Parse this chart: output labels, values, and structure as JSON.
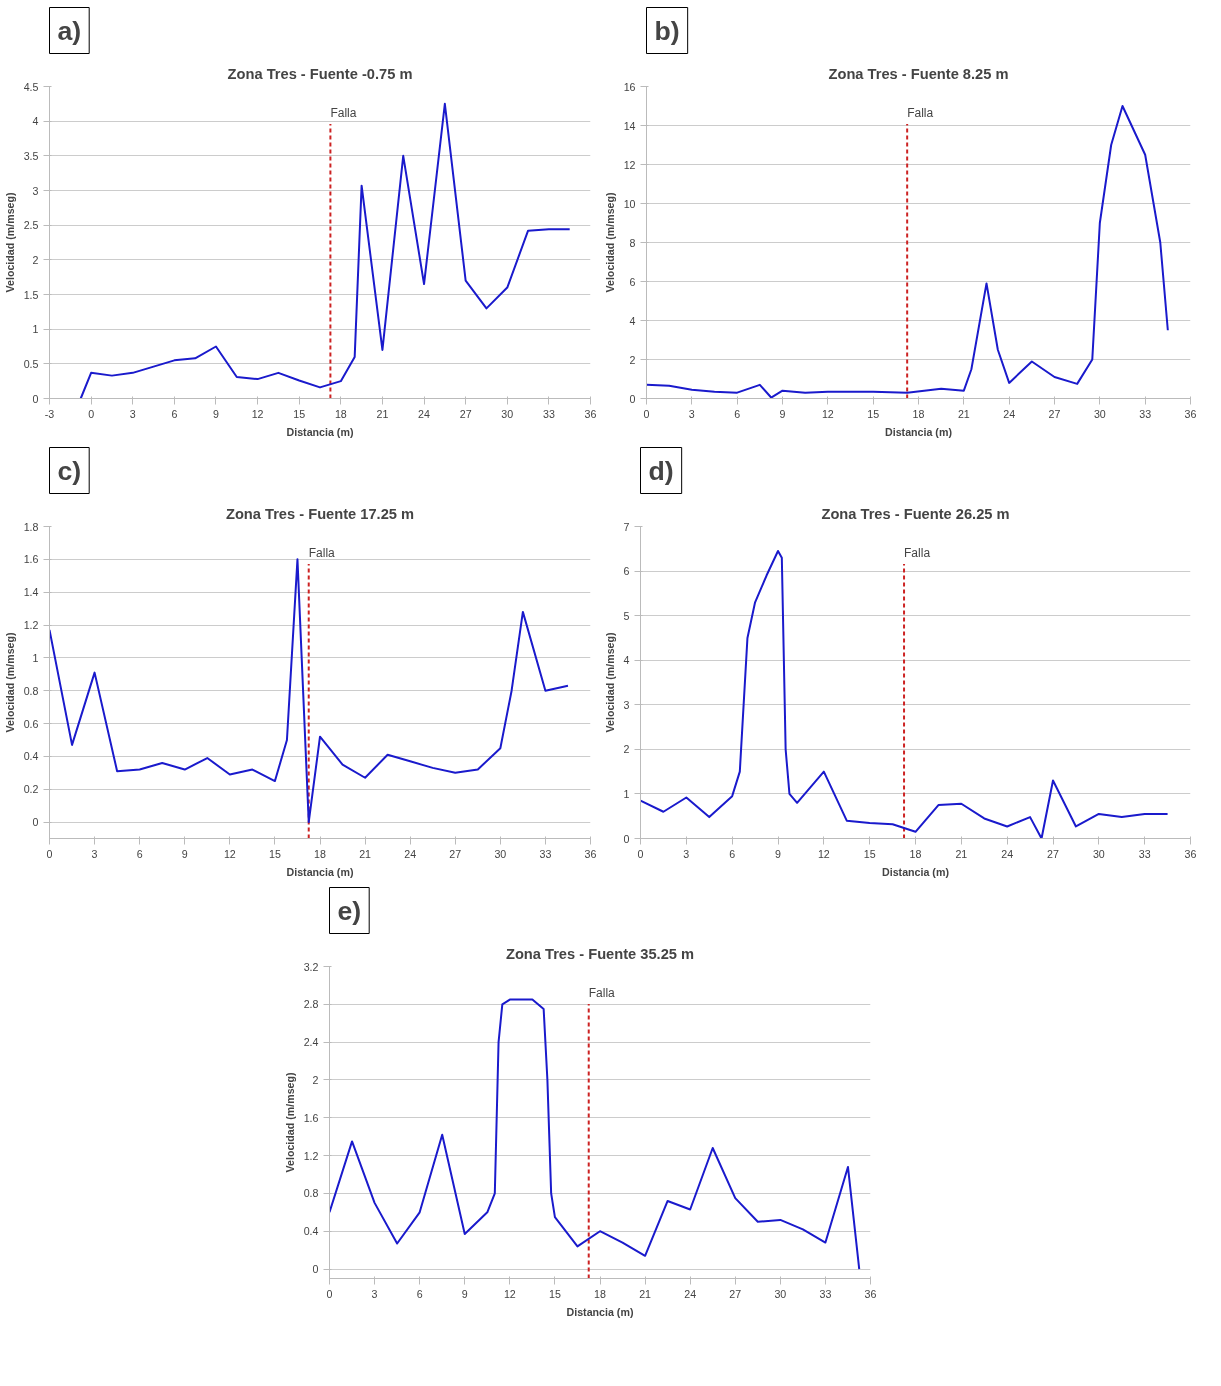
{
  "chart_data": [
    {
      "type": "line",
      "title": "Zona Tres - Fuente -0.75 m",
      "xlabel": "Distancia (m)",
      "ylabel": "Velocidad (m/mseg)",
      "annotations": [
        "a)"
      ],
      "grid": "y",
      "marker": "none",
      "line_style": "solid",
      "xlim": [
        -3,
        36
      ],
      "xticks": [
        -3,
        0,
        3,
        6,
        9,
        12,
        15,
        18,
        21,
        24,
        27,
        30,
        33,
        36
      ],
      "ylim": [
        0,
        4.5
      ],
      "yticks": [
        0,
        0.5,
        1,
        1.5,
        2,
        2.5,
        3,
        3.5,
        4,
        4.5
      ],
      "ref_lines": [
        {
          "axis": "x",
          "value": 17.25,
          "label": "Falla",
          "color": "#cc2222",
          "line_style": "dashed"
        }
      ],
      "series": [
        {
          "color": "#1a1acc",
          "x": [
            -0.75,
            0,
            1.5,
            3,
            4.5,
            6,
            7.5,
            9,
            10.5,
            12,
            13.5,
            15,
            16.5,
            18,
            19,
            19.5,
            21,
            22.5,
            24,
            25.5,
            27,
            28.5,
            30,
            31.5,
            33,
            34.5
          ],
          "values": [
            0,
            0.37,
            0.33,
            0.37,
            0.46,
            0.55,
            0.58,
            0.75,
            0.31,
            0.28,
            0.37,
            0.26,
            0.16,
            0.25,
            0.6,
            3.07,
            0.7,
            3.5,
            1.65,
            4.25,
            1.7,
            1.3,
            1.6,
            2.42,
            2.44,
            2.44
          ]
        }
      ]
    },
    {
      "type": "line",
      "title": "Zona Tres - Fuente 8.25 m",
      "xlabel": "Distancia (m)",
      "ylabel": "Velocidad (m/mseg)",
      "annotations": [
        "b)"
      ],
      "grid": "y",
      "marker": "none",
      "line_style": "solid",
      "xlim": [
        0,
        36
      ],
      "xticks": [
        0,
        3,
        6,
        9,
        12,
        15,
        18,
        21,
        24,
        27,
        30,
        33,
        36
      ],
      "ylim": [
        0,
        16
      ],
      "yticks": [
        0,
        2,
        4,
        6,
        8,
        10,
        12,
        14,
        16
      ],
      "ref_lines": [
        {
          "axis": "x",
          "value": 17.25,
          "label": "Falla",
          "color": "#cc2222",
          "line_style": "dashed"
        }
      ],
      "series": [
        {
          "color": "#1a1acc",
          "x": [
            0,
            1.5,
            3,
            4.5,
            6,
            7.5,
            8.25,
            9,
            10.5,
            12,
            15,
            17.25,
            19.5,
            21,
            21.5,
            22.5,
            23.25,
            24,
            25.5,
            27,
            28.5,
            29.5,
            30,
            30.75,
            31.5,
            33,
            34,
            34.5
          ],
          "values": [
            0.7,
            0.65,
            0.45,
            0.35,
            0.3,
            0.7,
            0.05,
            0.4,
            0.3,
            0.35,
            0.35,
            0.3,
            0.5,
            0.4,
            1.5,
            5.9,
            2.5,
            0.8,
            1.9,
            1.1,
            0.75,
            2,
            9,
            13,
            15,
            12.5,
            8,
            3.5
          ]
        }
      ]
    },
    {
      "type": "line",
      "title": "Zona Tres - Fuente 17.25 m",
      "xlabel": "Distancia (m)",
      "ylabel": "Velocidad (m/mseg)",
      "annotations": [
        "c)"
      ],
      "grid": "y",
      "marker": "none",
      "line_style": "solid",
      "xlim": [
        0,
        36
      ],
      "xticks": [
        0,
        3,
        6,
        9,
        12,
        15,
        18,
        21,
        24,
        27,
        30,
        33,
        36
      ],
      "ylim": [
        -0.1,
        1.8
      ],
      "yticks": [
        0,
        0.2,
        0.4,
        0.6,
        0.8,
        1,
        1.2,
        1.4,
        1.6,
        1.8
      ],
      "ref_lines": [
        {
          "axis": "x",
          "value": 17.25,
          "label": "Falla",
          "color": "#cc2222",
          "line_style": "dashed"
        }
      ],
      "series": [
        {
          "color": "#1a1acc",
          "x": [
            0,
            1.5,
            3,
            4.5,
            6,
            7.5,
            9,
            10.5,
            12,
            13.5,
            15,
            15.8,
            16.5,
            17.25,
            18,
            19.5,
            21,
            22.5,
            24,
            25.5,
            27,
            28.5,
            30,
            30.75,
            31.5,
            33,
            34.5
          ],
          "values": [
            1.17,
            0.47,
            0.91,
            0.31,
            0.32,
            0.36,
            0.32,
            0.39,
            0.29,
            0.32,
            0.25,
            0.5,
            1.6,
            0,
            0.52,
            0.35,
            0.27,
            0.41,
            0.37,
            0.33,
            0.3,
            0.32,
            0.45,
            0.8,
            1.28,
            0.8,
            0.83
          ]
        }
      ]
    },
    {
      "type": "line",
      "title": "Zona Tres - Fuente 26.25 m",
      "xlabel": "Distancia (m)",
      "ylabel": "Velocidad (m/mseg)",
      "annotations": [
        "d)"
      ],
      "grid": "y",
      "marker": "none",
      "line_style": "solid",
      "xlim": [
        0,
        36
      ],
      "xticks": [
        0,
        3,
        6,
        9,
        12,
        15,
        18,
        21,
        24,
        27,
        30,
        33,
        36
      ],
      "ylim": [
        0,
        7
      ],
      "yticks": [
        0,
        1,
        2,
        3,
        4,
        5,
        6,
        7
      ],
      "ref_lines": [
        {
          "axis": "x",
          "value": 17.25,
          "label": "Falla",
          "color": "#cc2222",
          "line_style": "dashed"
        }
      ],
      "series": [
        {
          "color": "#1a1acc",
          "x": [
            0,
            1.5,
            3,
            4.5,
            6,
            6.5,
            7,
            7.5,
            8.25,
            9,
            9.25,
            9.5,
            9.75,
            10.25,
            12,
            13.5,
            15,
            16.5,
            18,
            19.5,
            21,
            22.5,
            24,
            25.5,
            26.25,
            27,
            28.5,
            30,
            31.5,
            33,
            34.5
          ],
          "values": [
            0.85,
            0.6,
            0.92,
            0.48,
            0.95,
            1.5,
            4.5,
            5.3,
            5.9,
            6.45,
            6.3,
            2,
            1.0,
            0.8,
            1.5,
            0.4,
            0.35,
            0.32,
            0.15,
            0.75,
            0.78,
            0.45,
            0.27,
            0.48,
            0,
            1.3,
            0.27,
            0.55,
            0.48,
            0.55,
            0.55
          ]
        }
      ]
    },
    {
      "type": "line",
      "title": "Zona Tres - Fuente 35.25 m",
      "xlabel": "Distancia (m)",
      "ylabel": "Velocidad (m/mseg)",
      "annotations": [
        "e)"
      ],
      "grid": "y",
      "marker": "none",
      "line_style": "solid",
      "xlim": [
        0,
        36
      ],
      "xticks": [
        0,
        3,
        6,
        9,
        12,
        15,
        18,
        21,
        24,
        27,
        30,
        33,
        36
      ],
      "ylim": [
        -0.1,
        3.2
      ],
      "yticks": [
        0,
        0.4,
        0.8,
        1.2,
        1.6,
        2,
        2.4,
        2.8,
        3.2
      ],
      "ref_lines": [
        {
          "axis": "x",
          "value": 17.25,
          "label": "Falla",
          "color": "#cc2222",
          "line_style": "dashed"
        }
      ],
      "series": [
        {
          "color": "#1a1acc",
          "x": [
            0,
            1.5,
            3,
            4.5,
            6,
            7.5,
            9,
            10.5,
            11,
            11.25,
            11.5,
            12,
            13.5,
            14.25,
            14.5,
            14.75,
            15,
            16.5,
            18,
            19.5,
            21,
            22.5,
            24,
            25.5,
            27,
            28.5,
            30,
            31.5,
            33,
            34.5,
            35.25
          ],
          "values": [
            0.6,
            1.35,
            0.7,
            0.27,
            0.6,
            1.42,
            0.37,
            0.6,
            0.8,
            2.4,
            2.8,
            2.85,
            2.85,
            2.75,
            2.0,
            0.8,
            0.55,
            0.24,
            0.4,
            0.28,
            0.14,
            0.72,
            0.63,
            1.28,
            0.75,
            0.5,
            0.52,
            0.42,
            0.28,
            1.08,
            0
          ]
        }
      ]
    }
  ]
}
